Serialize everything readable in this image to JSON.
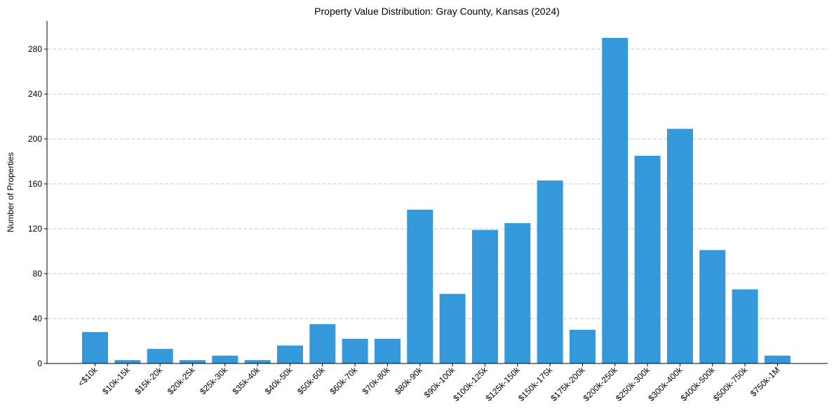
{
  "chart_data": {
    "type": "bar",
    "title": "Property Value Distribution: Gray County, Kansas (2024)",
    "xlabel": "",
    "ylabel": "Number of Properties",
    "categories": [
      "<$10k",
      "$10k-15k",
      "$15k-20k",
      "$20k-25k",
      "$25k-30k",
      "$35k-40k",
      "$40k-50k",
      "$50k-60k",
      "$60k-70k",
      "$70k-80k",
      "$80k-90k",
      "$90k-100k",
      "$100k-125k",
      "$125k-150k",
      "$150k-175k",
      "$175k-200k",
      "$200k-250k",
      "$250k-300k",
      "$300k-400k",
      "$400k-500k",
      "$500k-750k",
      "$750k-1M"
    ],
    "values": [
      28,
      3,
      13,
      3,
      7,
      3,
      16,
      35,
      22,
      22,
      137,
      62,
      119,
      125,
      163,
      30,
      290,
      185,
      209,
      101,
      66,
      7
    ],
    "ylim": [
      0,
      305
    ],
    "yticks": [
      0,
      40,
      80,
      120,
      160,
      200,
      240,
      280
    ],
    "grid": "y",
    "bar_color": "#3498db"
  }
}
